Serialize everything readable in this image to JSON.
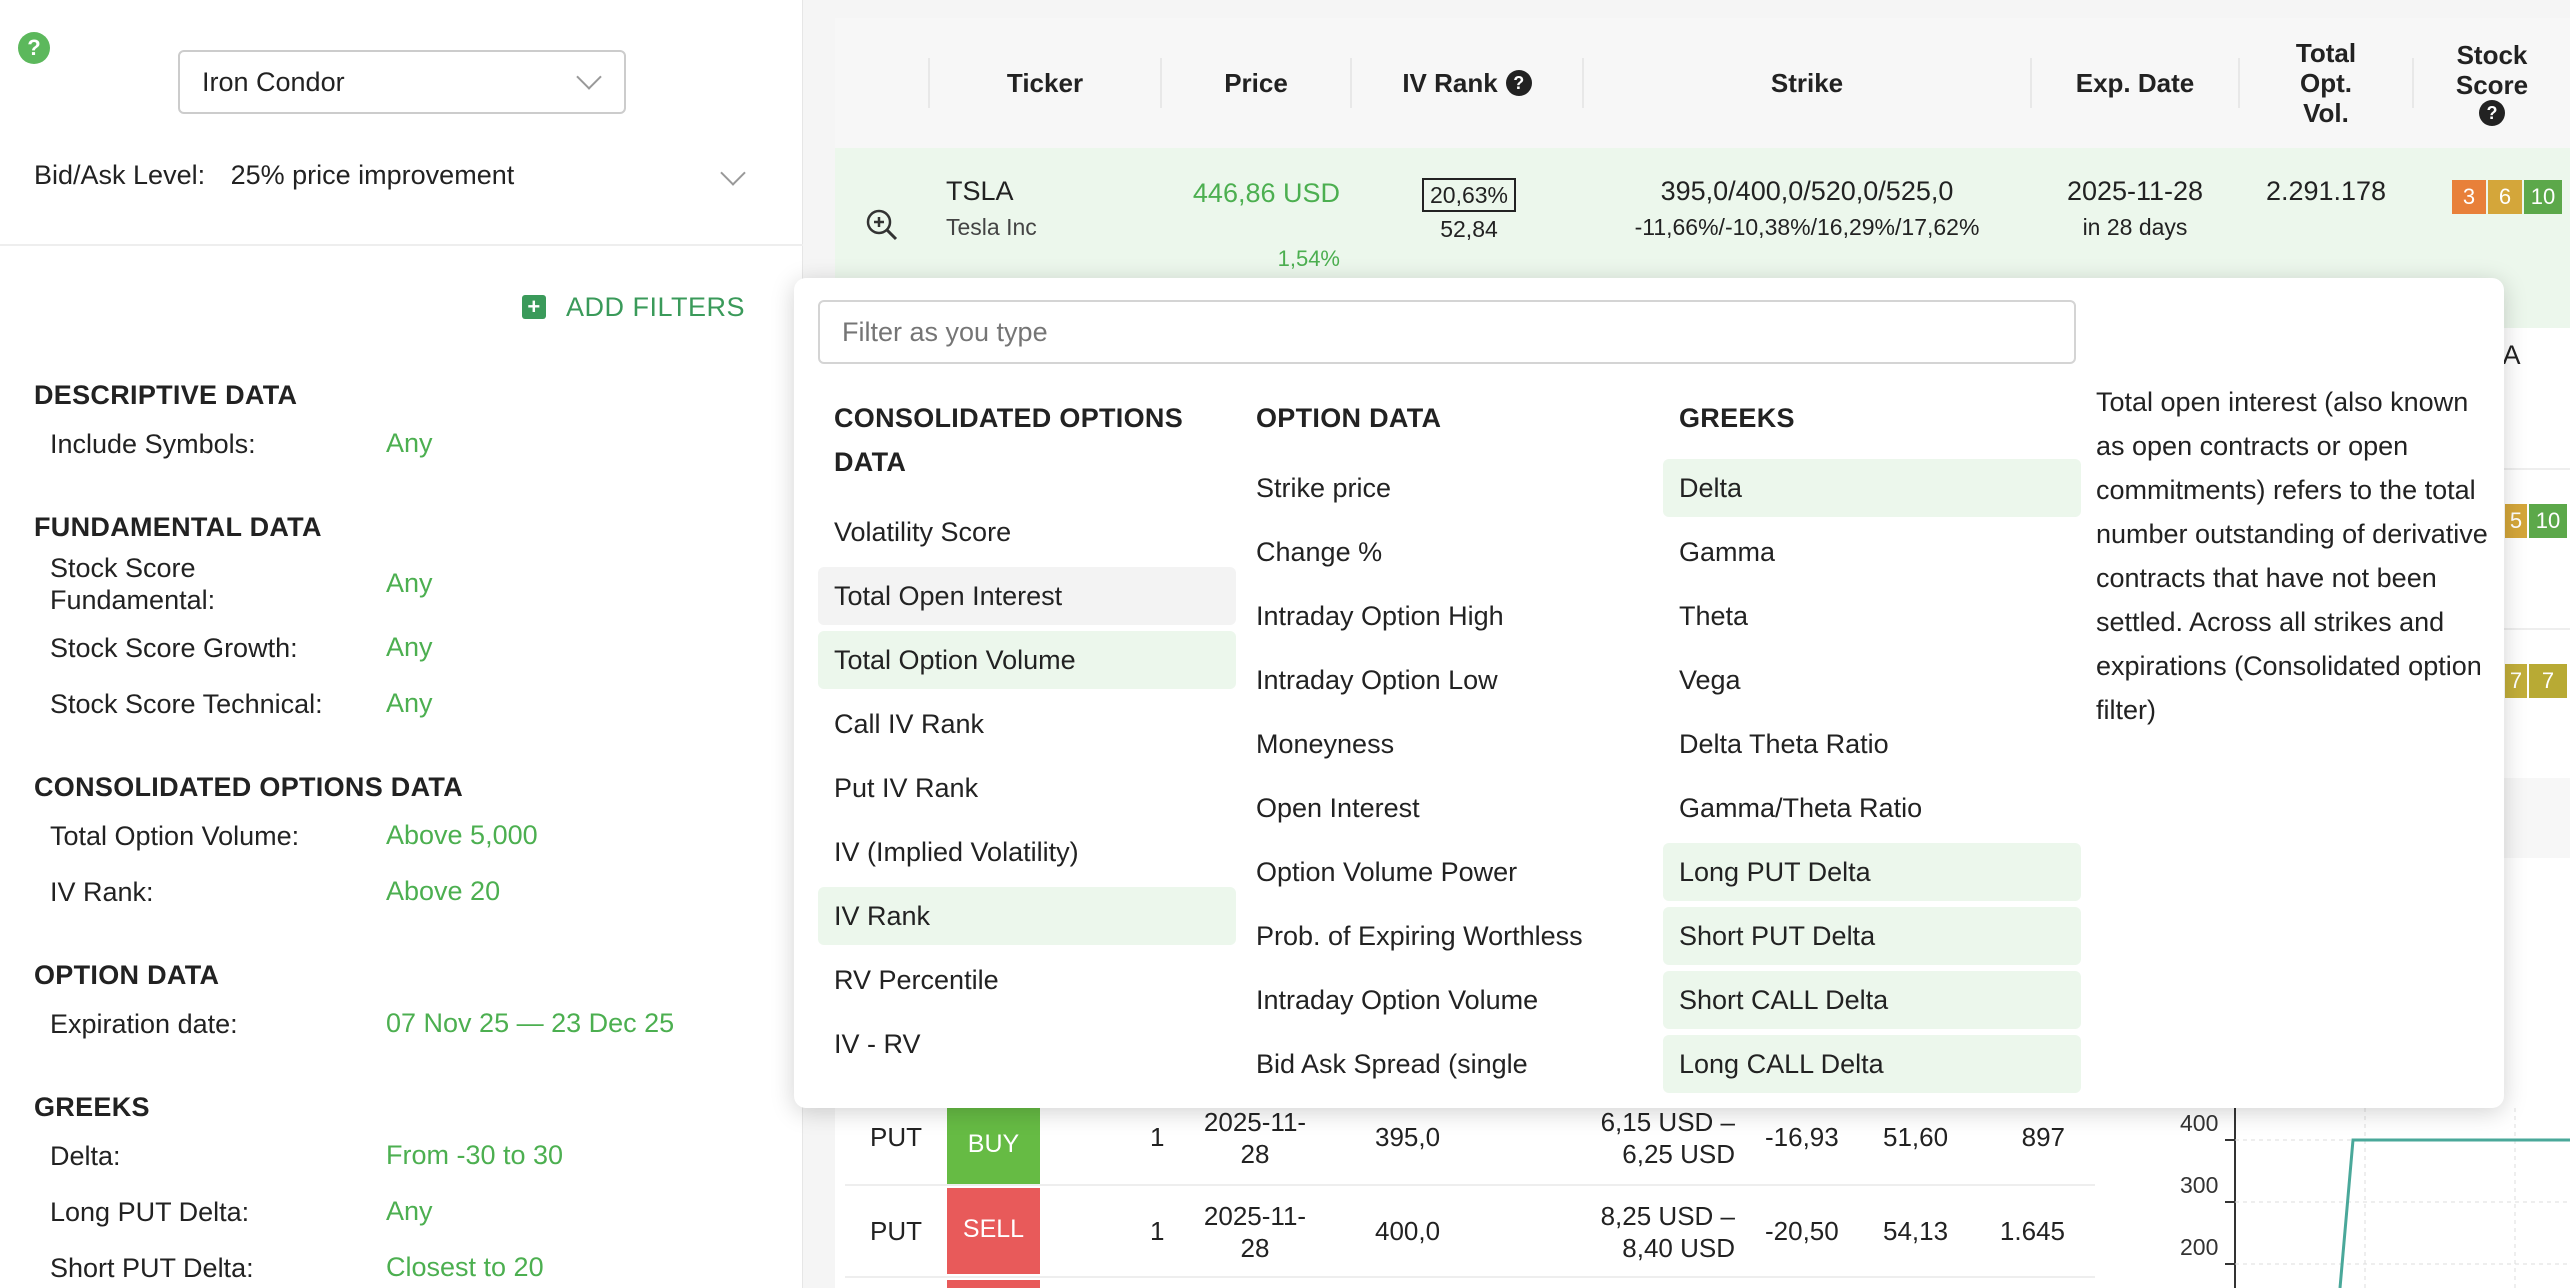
{
  "left_panel": {
    "help_label": "?",
    "strategy": "Iron Condor",
    "bid_ask_label": "Bid/Ask Level:",
    "bid_ask_value": "25% price improvement",
    "add_filters_label": "ADD FILTERS",
    "sections": {
      "descriptive": {
        "title": "DESCRIPTIVE DATA",
        "include_symbols": {
          "label": "Include Symbols:",
          "value": "Any"
        }
      },
      "fundamental": {
        "title": "FUNDAMENTAL DATA",
        "stock_score_fundamental": {
          "label": "Stock Score Fundamental:",
          "value": "Any"
        },
        "stock_score_growth": {
          "label": "Stock Score Growth:",
          "value": "Any"
        },
        "stock_score_technical": {
          "label": "Stock Score Technical:",
          "value": "Any"
        }
      },
      "consolidated": {
        "title": "CONSOLIDATED OPTIONS DATA",
        "total_option_volume": {
          "label": "Total Option Volume:",
          "value": "Above 5,000"
        },
        "iv_rank": {
          "label": "IV Rank:",
          "value": "Above 20"
        }
      },
      "option_data": {
        "title": "OPTION DATA",
        "expiration_date": {
          "label": "Expiration date:",
          "value": "07 Nov 25 — 23 Dec 25"
        }
      },
      "greeks": {
        "title": "GREEKS",
        "delta": {
          "label": "Delta:",
          "value": "From -30 to 30"
        },
        "long_put_delta": {
          "label": "Long PUT Delta:",
          "value": "Any"
        },
        "short_put_delta": {
          "label": "Short PUT Delta:",
          "value": "Closest to 20"
        }
      }
    }
  },
  "table": {
    "headers": {
      "ticker": "Ticker",
      "price": "Price",
      "iv_rank": "IV Rank",
      "iv_rank_help": "?",
      "strike": "Strike",
      "exp_date": "Exp. Date",
      "total_opt_vol": "Total Opt. Vol.",
      "stock_score": "Stock Score",
      "stock_score_help": "?"
    },
    "row": {
      "ticker": "TSLA",
      "company": "Tesla Inc",
      "price": "446,86 USD",
      "price_change": "1,54%",
      "iv_rank": "20,63%",
      "iv_sub": "52,84",
      "strike": "395,0/400,0/520,0/525,0",
      "strike_pct": "-11,66%/-10,38%/16,29%/17,62%",
      "exp_date": "2025-11-28",
      "exp_days": "in 28 days",
      "total_opt_vol": "2.291.178",
      "scores": [
        "3",
        "6",
        "10"
      ]
    },
    "partial_cells": {
      "na": "/A",
      "score_a": "5",
      "score_b": "10",
      "score_c": "7",
      "score_d": "7"
    }
  },
  "legs": [
    {
      "type": "PUT",
      "action": "BUY",
      "qty": "1",
      "exp": "2025-11-28",
      "strike": "395,0",
      "price": "6,15 USD – 6,25 USD",
      "delta": "-16,93",
      "iv": "51,60",
      "oi": "897"
    },
    {
      "type": "PUT",
      "action": "SELL",
      "qty": "1",
      "exp": "2025-11-28",
      "strike": "400,0",
      "price": "8,25 USD – 8,40 USD",
      "delta": "-20,50",
      "iv": "54,13",
      "oi": "1.645"
    }
  ],
  "chart": {
    "y_ticks": [
      "400",
      "300",
      "200"
    ]
  },
  "dropdown": {
    "placeholder": "Filter as you type",
    "columns": [
      {
        "title": "CONSOLIDATED OPTIONS DATA",
        "items": [
          "Volatility Score",
          "Total Open Interest",
          "Total Option Volume",
          "Call IV Rank",
          "Put IV Rank",
          "IV (Implied Volatility)",
          "IV Rank",
          "RV Percentile",
          "IV - RV"
        ]
      },
      {
        "title": "OPTION DATA",
        "items": [
          "Strike price",
          "Change %",
          "Intraday Option High",
          "Intraday Option Low",
          "Moneyness",
          "Open Interest",
          "Option Volume Power",
          "Prob. of Expiring Worthless",
          "Intraday Option Volume",
          "Bid Ask Spread (single"
        ]
      },
      {
        "title": "GREEKS",
        "items": [
          "Delta",
          "Gamma",
          "Theta",
          "Vega",
          "Delta Theta Ratio",
          "Gamma/Theta Ratio",
          "Long PUT Delta",
          "Short PUT Delta",
          "Short CALL Delta",
          "Long CALL Delta"
        ]
      }
    ],
    "description": "Total open interest (also known as open contracts or open commitments) refers to the total number outstanding of derivative contracts that have not been settled. Across all strikes and expirations (Consolidated option filter)"
  },
  "colors": {
    "accent_green": "#4caf50",
    "buy": "#66bb44",
    "sell": "#e85a5a",
    "score_orange": "#e8803a",
    "score_yellow": "#d4a63a",
    "score_green": "#5ca84a"
  }
}
